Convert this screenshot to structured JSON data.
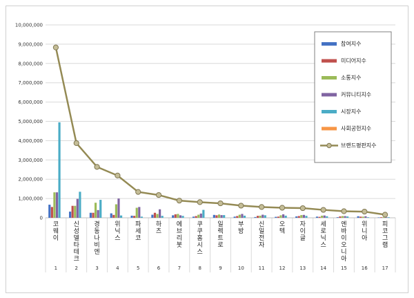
{
  "chart_data": {
    "type": "bar",
    "combo_line_series": "브랜드평판지수",
    "ylim": [
      0,
      10000000
    ],
    "yticks": [
      "0",
      "1,000,000",
      "2,000,000",
      "3,000,000",
      "4,000,000",
      "5,000,000",
      "6,000,000",
      "7,000,000",
      "8,000,000",
      "9,000,000",
      "10,000,000"
    ],
    "categories": [
      "코웨이",
      "신성델타테크",
      "경동나비엔",
      "위닉스",
      "파세코",
      "하츠",
      "에브리봇",
      "쿠쿠홈시스",
      "일렉트로",
      "부방",
      "신일전자",
      "오텍",
      "자이글",
      "세로닉스",
      "엔바이오니아",
      "위니아",
      "피코그램"
    ],
    "ranks": [
      "1",
      "2",
      "3",
      "4",
      "5",
      "6",
      "7",
      "8",
      "9",
      "10",
      "11",
      "12",
      "13",
      "14",
      "15",
      "16",
      "17"
    ],
    "series": [
      {
        "name": "참여지수",
        "color": "#4472c4",
        "values": [
          680000,
          320000,
          260000,
          230000,
          110000,
          160000,
          130000,
          60000,
          150000,
          60000,
          40000,
          50000,
          70000,
          60000,
          30000,
          80000,
          20000
        ]
      },
      {
        "name": "미디어지수",
        "color": "#c0504d",
        "values": [
          560000,
          620000,
          260000,
          150000,
          100000,
          260000,
          180000,
          90000,
          130000,
          90000,
          100000,
          60000,
          90000,
          50000,
          70000,
          60000,
          30000
        ]
      },
      {
        "name": "소통지수",
        "color": "#9bbb59",
        "values": [
          1320000,
          620000,
          780000,
          700000,
          520000,
          200000,
          200000,
          160000,
          170000,
          160000,
          110000,
          130000,
          140000,
          110000,
          90000,
          60000,
          30000
        ]
      },
      {
        "name": "커뮤니티지수",
        "color": "#8064a2",
        "values": [
          1320000,
          980000,
          400000,
          1000000,
          560000,
          440000,
          130000,
          220000,
          140000,
          200000,
          160000,
          180000,
          150000,
          120000,
          90000,
          80000,
          30000
        ]
      },
      {
        "name": "시장지수",
        "color": "#4bacc6",
        "values": [
          4950000,
          1350000,
          930000,
          120000,
          60000,
          100000,
          100000,
          410000,
          140000,
          110000,
          130000,
          110000,
          100000,
          80000,
          70000,
          30000,
          30000
        ]
      },
      {
        "name": "사회공헌지수",
        "color": "#f79646",
        "values": [
          0,
          0,
          0,
          0,
          0,
          0,
          0,
          0,
          0,
          0,
          0,
          0,
          0,
          0,
          0,
          0,
          0
        ]
      }
    ],
    "line": {
      "name": "브랜드평판지수",
      "color": "#948a54",
      "values": [
        8830000,
        3870000,
        2640000,
        2190000,
        1340000,
        1180000,
        890000,
        810000,
        750000,
        630000,
        560000,
        520000,
        500000,
        410000,
        340000,
        320000,
        160000
      ]
    },
    "legend_position": "top-right",
    "grid": true
  }
}
